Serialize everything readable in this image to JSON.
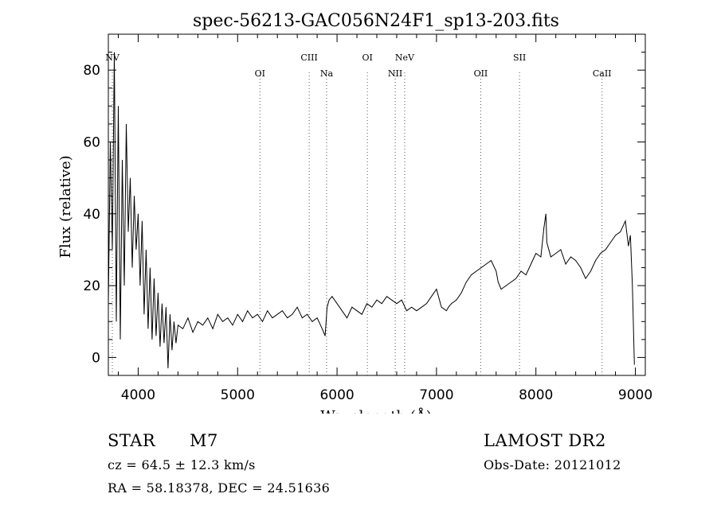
{
  "chart_data": {
    "type": "line",
    "title": "spec-56213-GAC056N24F1_sp13-203.fits",
    "xlabel": "Wavelength (Å)",
    "ylabel": "Flux (relative)",
    "xlim": [
      3700,
      9100
    ],
    "ylim": [
      -5,
      90
    ],
    "xticks": [
      4000,
      5000,
      6000,
      7000,
      8000,
      9000
    ],
    "yticks": [
      0,
      20,
      40,
      60,
      80
    ],
    "grid": false,
    "series": [
      {
        "x": [
          3700,
          3720,
          3740,
          3760,
          3780,
          3800,
          3820,
          3840,
          3860,
          3880,
          3900,
          3920,
          3940,
          3960,
          3980,
          4000,
          4020,
          4040,
          4060,
          4080,
          4100,
          4120,
          4140,
          4160,
          4180,
          4200,
          4220,
          4240,
          4260,
          4280,
          4300,
          4320,
          4340,
          4360,
          4380,
          4400,
          4450,
          4500,
          4550,
          4600,
          4650,
          4700,
          4750,
          4800,
          4850,
          4900,
          4950,
          5000,
          5050,
          5100,
          5150,
          5200,
          5250,
          5300,
          5350,
          5400,
          5450,
          5500,
          5550,
          5600,
          5650,
          5700,
          5750,
          5800,
          5850,
          5880,
          5900,
          5920,
          5950,
          6000,
          6050,
          6100,
          6150,
          6200,
          6250,
          6300,
          6350,
          6400,
          6450,
          6500,
          6550,
          6600,
          6650,
          6700,
          6750,
          6800,
          6850,
          6900,
          6950,
          7000,
          7050,
          7100,
          7120,
          7150,
          7200,
          7250,
          7300,
          7350,
          7400,
          7450,
          7500,
          7550,
          7600,
          7620,
          7650,
          7700,
          7750,
          7800,
          7850,
          7900,
          7950,
          8000,
          8050,
          8080,
          8100,
          8110,
          8150,
          8200,
          8250,
          8300,
          8350,
          8400,
          8450,
          8500,
          8550,
          8600,
          8650,
          8700,
          8750,
          8800,
          8850,
          8900,
          8930,
          8950,
          8970,
          8990
        ],
        "y": [
          15,
          60,
          30,
          85,
          10,
          70,
          5,
          55,
          20,
          65,
          35,
          50,
          25,
          45,
          30,
          40,
          20,
          38,
          12,
          30,
          8,
          25,
          5,
          22,
          6,
          18,
          3,
          15,
          4,
          14,
          -3,
          12,
          2,
          10,
          4,
          9,
          8,
          11,
          7,
          10,
          9,
          11,
          8,
          12,
          10,
          11,
          9,
          12,
          10,
          13,
          11,
          12,
          10,
          13,
          11,
          12,
          13,
          11,
          12,
          14,
          11,
          12,
          10,
          11,
          8,
          6,
          14,
          16,
          17,
          15,
          13,
          11,
          14,
          13,
          12,
          15,
          14,
          16,
          15,
          17,
          16,
          15,
          16,
          13,
          14,
          13,
          14,
          15,
          17,
          19,
          14,
          13,
          14,
          15,
          16,
          18,
          21,
          23,
          24,
          25,
          26,
          27,
          24,
          21,
          19,
          20,
          21,
          22,
          24,
          23,
          26,
          29,
          28,
          36,
          40,
          32,
          28,
          29,
          30,
          26,
          28,
          27,
          25,
          22,
          24,
          27,
          29,
          30,
          32,
          34,
          35,
          38,
          31,
          34,
          20,
          -2
        ]
      }
    ],
    "lines": [
      {
        "label": "NV",
        "x": 3740
      },
      {
        "label": "OI",
        "x": 5225
      },
      {
        "label": "CIII",
        "x": 5720
      },
      {
        "label": "Na",
        "x": 5895
      },
      {
        "label": "OI",
        "x": 6305
      },
      {
        "label": "NII",
        "x": 6585
      },
      {
        "label": "NeV",
        "x": 6680
      },
      {
        "label": "OII",
        "x": 7445
      },
      {
        "label": "SII",
        "x": 7835
      },
      {
        "label": "CaII",
        "x": 8665
      }
    ]
  },
  "info": {
    "object_class": "STAR",
    "subclass": "M7",
    "redshift": "cz = 64.5 ± 12.3 km/s",
    "coords": "RA =  58.18378, DEC =  24.51636",
    "survey": "LAMOST DR2",
    "obs_date": "Obs-Date: 20121012"
  }
}
